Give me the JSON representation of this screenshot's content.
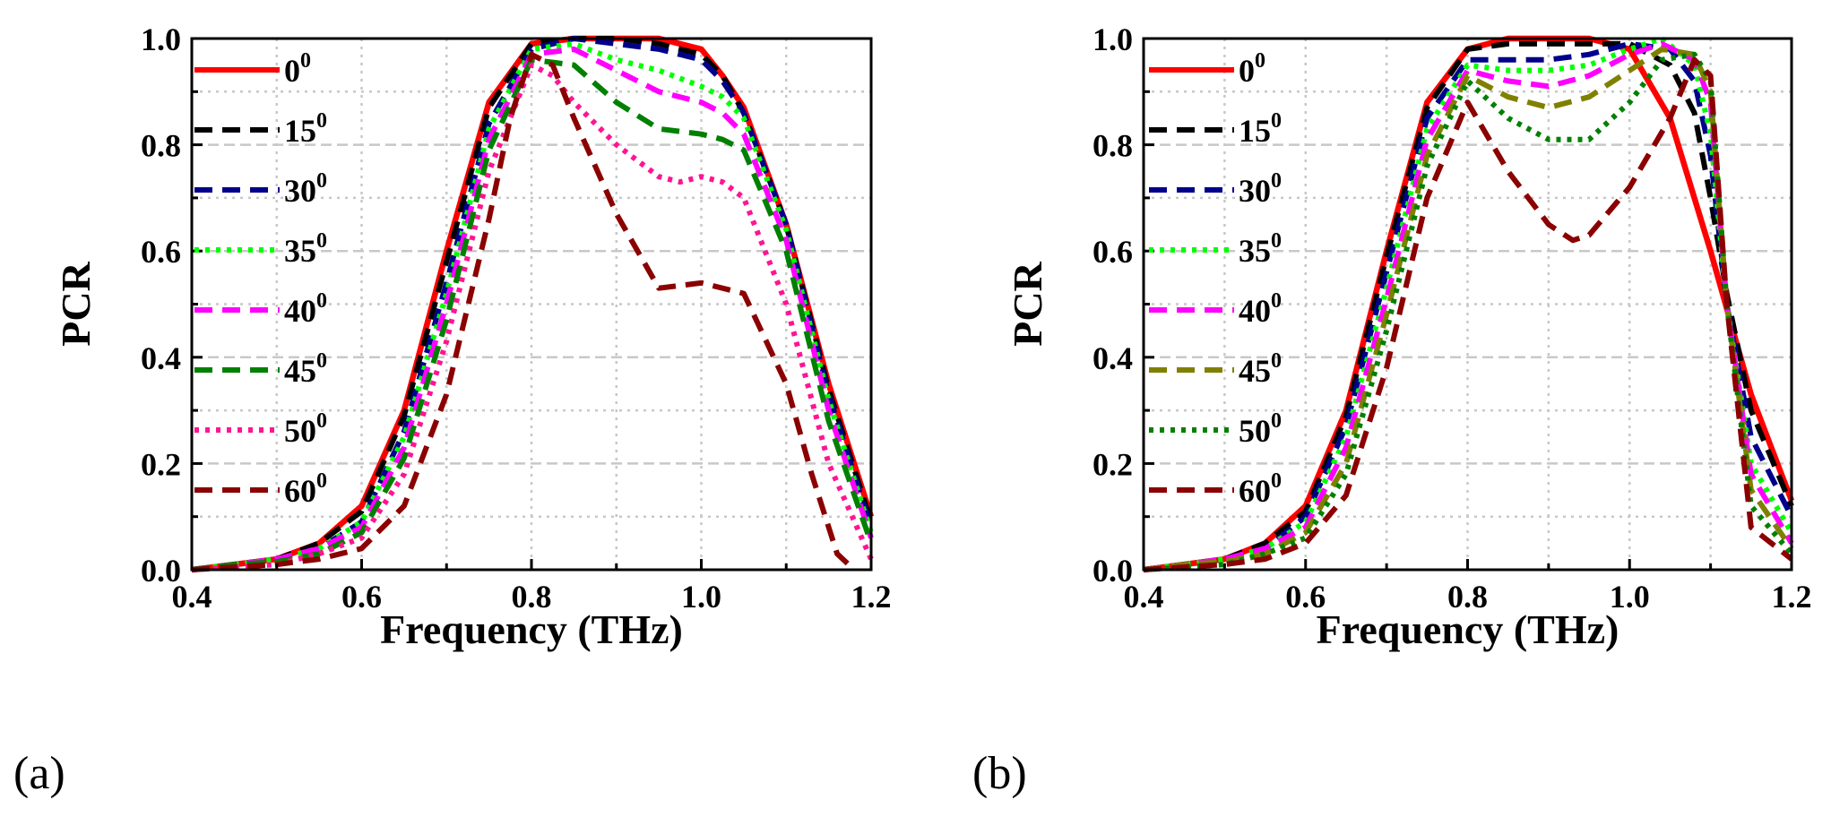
{
  "chart_data": [
    {
      "panel": "(a)",
      "type": "line",
      "xlabel": "Frequency (THz)",
      "ylabel": "PCR",
      "xlim": [
        0.4,
        1.2
      ],
      "ylim": [
        0.0,
        1.0
      ],
      "xticks": [
        "0.4",
        "0.6",
        "0.8",
        "1.0",
        "1.2"
      ],
      "yticks": [
        "0.0",
        "0.2",
        "0.4",
        "0.6",
        "0.8",
        "1.0"
      ],
      "grid": true,
      "legend_position": "left",
      "series": [
        {
          "name": "0",
          "sup": "0",
          "color": "#ff0000",
          "dash": "solid",
          "x": [
            0.4,
            0.45,
            0.5,
            0.55,
            0.6,
            0.65,
            0.7,
            0.75,
            0.8,
            0.85,
            0.9,
            0.95,
            1.0,
            1.025,
            1.05,
            1.1,
            1.15,
            1.2
          ],
          "y": [
            0.0,
            0.01,
            0.02,
            0.05,
            0.12,
            0.3,
            0.6,
            0.88,
            0.99,
            1.0,
            1.0,
            1.0,
            0.98,
            0.93,
            0.87,
            0.65,
            0.35,
            0.1
          ]
        },
        {
          "name": "15",
          "sup": "0",
          "color": "#000000",
          "dash": "dash",
          "x": [
            0.4,
            0.45,
            0.5,
            0.55,
            0.6,
            0.65,
            0.7,
            0.75,
            0.8,
            0.85,
            0.9,
            0.95,
            1.0,
            1.025,
            1.05,
            1.1,
            1.15,
            1.2
          ],
          "y": [
            0.0,
            0.01,
            0.02,
            0.05,
            0.11,
            0.29,
            0.58,
            0.87,
            0.99,
            1.0,
            1.0,
            0.99,
            0.97,
            0.93,
            0.86,
            0.65,
            0.34,
            0.09
          ]
        },
        {
          "name": "30",
          "sup": "0",
          "color": "#00008b",
          "dash": "dash",
          "x": [
            0.4,
            0.45,
            0.5,
            0.55,
            0.6,
            0.65,
            0.7,
            0.75,
            0.8,
            0.85,
            0.9,
            0.95,
            1.0,
            1.025,
            1.05,
            1.1,
            1.15,
            1.2
          ],
          "y": [
            0.0,
            0.01,
            0.02,
            0.04,
            0.09,
            0.26,
            0.54,
            0.84,
            0.98,
            1.0,
            0.99,
            0.98,
            0.96,
            0.92,
            0.86,
            0.65,
            0.33,
            0.08
          ]
        },
        {
          "name": "35",
          "sup": "0",
          "color": "#00ff00",
          "dash": "dot",
          "x": [
            0.4,
            0.45,
            0.5,
            0.55,
            0.6,
            0.65,
            0.7,
            0.75,
            0.8,
            0.85,
            0.9,
            0.95,
            1.0,
            1.025,
            1.05,
            1.1,
            1.15,
            1.2
          ],
          "y": [
            0.0,
            0.01,
            0.02,
            0.04,
            0.09,
            0.25,
            0.52,
            0.83,
            0.98,
            0.99,
            0.96,
            0.94,
            0.91,
            0.89,
            0.85,
            0.64,
            0.32,
            0.07
          ]
        },
        {
          "name": "40",
          "sup": "0",
          "color": "#ff00ff",
          "dash": "dash",
          "x": [
            0.4,
            0.45,
            0.5,
            0.55,
            0.6,
            0.65,
            0.7,
            0.75,
            0.8,
            0.85,
            0.9,
            0.95,
            1.0,
            1.025,
            1.05,
            1.1,
            1.15,
            1.2
          ],
          "y": [
            0.0,
            0.01,
            0.02,
            0.04,
            0.08,
            0.23,
            0.5,
            0.81,
            0.97,
            0.98,
            0.94,
            0.9,
            0.88,
            0.86,
            0.82,
            0.62,
            0.3,
            0.06
          ]
        },
        {
          "name": "45",
          "sup": "0",
          "color": "#008000",
          "dash": "dash",
          "x": [
            0.4,
            0.45,
            0.5,
            0.55,
            0.6,
            0.65,
            0.7,
            0.75,
            0.8,
            0.85,
            0.9,
            0.95,
            1.0,
            1.025,
            1.05,
            1.1,
            1.15,
            1.2
          ],
          "y": [
            0.0,
            0.01,
            0.015,
            0.03,
            0.07,
            0.21,
            0.47,
            0.79,
            0.96,
            0.95,
            0.88,
            0.83,
            0.82,
            0.81,
            0.79,
            0.6,
            0.28,
            0.05
          ]
        },
        {
          "name": "50",
          "sup": "0",
          "color": "#ff1493",
          "dash": "dot",
          "x": [
            0.4,
            0.45,
            0.5,
            0.55,
            0.6,
            0.65,
            0.7,
            0.75,
            0.8,
            0.825,
            0.85,
            0.9,
            0.95,
            0.975,
            1.0,
            1.025,
            1.05,
            1.1,
            1.15,
            1.2
          ],
          "y": [
            0.0,
            0.005,
            0.01,
            0.03,
            0.06,
            0.18,
            0.43,
            0.75,
            0.95,
            0.93,
            0.88,
            0.8,
            0.74,
            0.73,
            0.74,
            0.73,
            0.7,
            0.5,
            0.2,
            0.02
          ]
        },
        {
          "name": "60",
          "sup": "0",
          "color": "#8b0000",
          "dash": "dash",
          "x": [
            0.4,
            0.45,
            0.5,
            0.55,
            0.6,
            0.65,
            0.7,
            0.75,
            0.775,
            0.8,
            0.825,
            0.85,
            0.9,
            0.95,
            1.0,
            1.05,
            1.1,
            1.13,
            1.16,
            1.18
          ],
          "y": [
            0.0,
            0.005,
            0.01,
            0.02,
            0.04,
            0.12,
            0.33,
            0.66,
            0.85,
            0.97,
            0.95,
            0.85,
            0.67,
            0.53,
            0.54,
            0.52,
            0.35,
            0.18,
            0.03,
            0.0
          ]
        }
      ]
    },
    {
      "panel": "(b)",
      "type": "line",
      "xlabel": "Frequency (THz)",
      "ylabel": "PCR",
      "xlim": [
        0.4,
        1.2
      ],
      "ylim": [
        0.0,
        1.0
      ],
      "xticks": [
        "0.4",
        "0.6",
        "0.8",
        "1.0",
        "1.2"
      ],
      "yticks": [
        "0.0",
        "0.2",
        "0.4",
        "0.6",
        "0.8",
        "1.0"
      ],
      "grid": true,
      "legend_position": "left",
      "series": [
        {
          "name": "0",
          "sup": "0",
          "color": "#ff0000",
          "dash": "solid",
          "x": [
            0.4,
            0.45,
            0.5,
            0.55,
            0.6,
            0.65,
            0.7,
            0.75,
            0.8,
            0.85,
            0.9,
            0.95,
            1.0,
            1.05,
            1.1,
            1.15,
            1.2
          ],
          "y": [
            0.0,
            0.01,
            0.02,
            0.05,
            0.12,
            0.3,
            0.6,
            0.88,
            0.98,
            1.0,
            1.0,
            1.0,
            0.98,
            0.85,
            0.6,
            0.33,
            0.13
          ]
        },
        {
          "name": "15",
          "sup": "0",
          "color": "#000000",
          "dash": "dash",
          "x": [
            0.4,
            0.45,
            0.5,
            0.55,
            0.6,
            0.65,
            0.7,
            0.75,
            0.8,
            0.85,
            0.9,
            0.95,
            1.0,
            1.05,
            1.08,
            1.1,
            1.12,
            1.15,
            1.2
          ],
          "y": [
            0.0,
            0.01,
            0.02,
            0.05,
            0.11,
            0.29,
            0.59,
            0.87,
            0.98,
            0.99,
            0.99,
            0.99,
            0.99,
            0.95,
            0.86,
            0.7,
            0.52,
            0.3,
            0.12
          ]
        },
        {
          "name": "30",
          "sup": "0",
          "color": "#00008b",
          "dash": "dash",
          "x": [
            0.4,
            0.45,
            0.5,
            0.55,
            0.6,
            0.65,
            0.7,
            0.75,
            0.8,
            0.85,
            0.9,
            0.95,
            1.0,
            1.05,
            1.08,
            1.1,
            1.12,
            1.15,
            1.2
          ],
          "y": [
            0.0,
            0.01,
            0.02,
            0.04,
            0.1,
            0.27,
            0.56,
            0.85,
            0.96,
            0.96,
            0.96,
            0.97,
            0.99,
            0.98,
            0.92,
            0.78,
            0.5,
            0.25,
            0.1
          ]
        },
        {
          "name": "35",
          "sup": "0",
          "color": "#00ff00",
          "dash": "dot",
          "x": [
            0.4,
            0.45,
            0.5,
            0.55,
            0.6,
            0.65,
            0.7,
            0.75,
            0.8,
            0.85,
            0.9,
            0.95,
            1.0,
            1.04,
            1.08,
            1.1,
            1.12,
            1.15,
            1.2
          ],
          "y": [
            0.0,
            0.01,
            0.02,
            0.04,
            0.09,
            0.25,
            0.53,
            0.83,
            0.95,
            0.94,
            0.94,
            0.95,
            0.98,
            1.0,
            0.95,
            0.82,
            0.5,
            0.2,
            0.07
          ]
        },
        {
          "name": "40",
          "sup": "0",
          "color": "#ff00ff",
          "dash": "dash",
          "x": [
            0.4,
            0.45,
            0.5,
            0.55,
            0.6,
            0.65,
            0.7,
            0.75,
            0.8,
            0.85,
            0.9,
            0.95,
            1.0,
            1.04,
            1.08,
            1.1,
            1.12,
            1.15,
            1.2
          ],
          "y": [
            0.0,
            0.01,
            0.02,
            0.04,
            0.08,
            0.23,
            0.51,
            0.81,
            0.94,
            0.92,
            0.91,
            0.93,
            0.97,
            0.99,
            0.96,
            0.88,
            0.5,
            0.18,
            0.05
          ]
        },
        {
          "name": "45",
          "sup": "0",
          "color": "#808000",
          "dash": "dash",
          "x": [
            0.4,
            0.45,
            0.5,
            0.55,
            0.6,
            0.65,
            0.7,
            0.75,
            0.8,
            0.85,
            0.9,
            0.95,
            1.0,
            1.04,
            1.08,
            1.1,
            1.12,
            1.15,
            1.2
          ],
          "y": [
            0.0,
            0.01,
            0.015,
            0.03,
            0.07,
            0.2,
            0.48,
            0.78,
            0.93,
            0.89,
            0.87,
            0.89,
            0.94,
            0.98,
            0.97,
            0.9,
            0.5,
            0.15,
            0.04
          ]
        },
        {
          "name": "50",
          "sup": "0",
          "color": "#008000",
          "dash": "dot",
          "x": [
            0.4,
            0.45,
            0.5,
            0.55,
            0.6,
            0.65,
            0.7,
            0.75,
            0.8,
            0.85,
            0.9,
            0.95,
            1.0,
            1.04,
            1.08,
            1.1,
            1.12,
            1.15,
            1.2
          ],
          "y": [
            0.0,
            0.005,
            0.01,
            0.03,
            0.06,
            0.18,
            0.45,
            0.76,
            0.92,
            0.85,
            0.81,
            0.81,
            0.88,
            0.96,
            0.97,
            0.92,
            0.5,
            0.12,
            0.03
          ]
        },
        {
          "name": "60",
          "sup": "0",
          "color": "#8b0000",
          "dash": "dash",
          "x": [
            0.4,
            0.45,
            0.5,
            0.55,
            0.6,
            0.65,
            0.7,
            0.75,
            0.8,
            0.85,
            0.9,
            0.93,
            0.95,
            1.0,
            1.05,
            1.08,
            1.1,
            1.12,
            1.15,
            1.2
          ],
          "y": [
            0.0,
            0.005,
            0.01,
            0.02,
            0.05,
            0.14,
            0.38,
            0.7,
            0.88,
            0.75,
            0.65,
            0.62,
            0.63,
            0.72,
            0.85,
            0.96,
            0.93,
            0.5,
            0.08,
            0.02
          ]
        }
      ]
    }
  ]
}
